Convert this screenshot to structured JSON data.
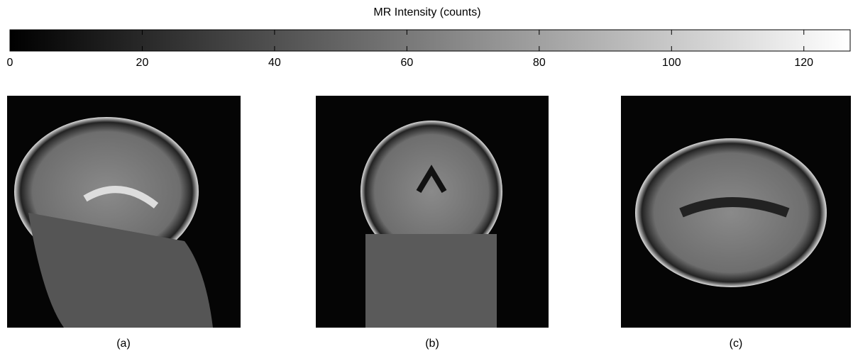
{
  "chart_data": {
    "type": "colorbar",
    "title": "MR Intensity (counts)",
    "xlim": [
      0,
      127
    ],
    "xticks": [
      0,
      20,
      40,
      60,
      80,
      100,
      120
    ],
    "colormap": "gray"
  },
  "panels": [
    {
      "label": "(a)"
    },
    {
      "label": "(b)"
    },
    {
      "label": "(c)"
    }
  ]
}
